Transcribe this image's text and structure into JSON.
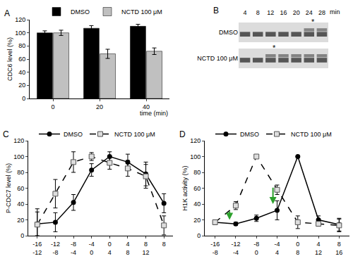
{
  "chart_data": [
    {
      "panel": "A",
      "type": "bar",
      "categories": [
        "0",
        "20",
        "40"
      ],
      "xlabel": "time (min)",
      "ylabel": "CDC6 level (%)",
      "ylim": [
        0,
        120
      ],
      "yticks": [
        0,
        20,
        40,
        60,
        80,
        100,
        120
      ],
      "grid": false,
      "legend": "top",
      "series": [
        {
          "name": "DMSO",
          "color": "#000000",
          "values": [
            100,
            107,
            110
          ],
          "errors": [
            3,
            4,
            3
          ]
        },
        {
          "name": "NCTD 100 μM",
          "color": "#c0c0c0",
          "values": [
            100,
            68,
            72
          ],
          "errors": [
            4,
            7,
            5
          ]
        }
      ]
    },
    {
      "panel": "B",
      "type": "blot",
      "categories": [
        "4",
        "8",
        "12",
        "16",
        "20",
        "24",
        "28"
      ],
      "xlabel": "min",
      "series": [
        {
          "name": "DMSO",
          "color": "#2a2a2a"
        },
        {
          "name": "NCTD 100 μM",
          "color": "#2a2a2a"
        }
      ],
      "annotations": [
        {
          "text": "*",
          "series": 0,
          "category": 5
        },
        {
          "text": "*",
          "series": 1,
          "category": 2
        }
      ]
    },
    {
      "panel": "C",
      "type": "line",
      "categories": [
        "-16",
        "-12",
        "-8",
        "-4",
        "0",
        "4",
        "8",
        "8"
      ],
      "categories_lower": [
        "-12",
        "-8",
        "-4",
        "0",
        "4",
        "8",
        "12",
        null
      ],
      "ylabel": "P-CDC7 level (%)",
      "ylim": [
        0,
        120
      ],
      "yticks": [
        0,
        20,
        40,
        60,
        80,
        100,
        120
      ],
      "grid": false,
      "legend": "top",
      "series": [
        {
          "name": "DMSO",
          "color": "#000000",
          "marker": "circle",
          "line_style": "solid",
          "values": [
            15,
            17,
            42,
            83,
            100,
            93,
            78,
            41
          ],
          "errors": [
            15,
            12,
            10,
            8,
            6,
            10,
            15,
            12
          ]
        },
        {
          "name": "NCTD 100 μM",
          "color": "#000000",
          "marker": "square",
          "line_style": "dash",
          "values": [
            14,
            53,
            93,
            100,
            92,
            85,
            75,
            13
          ],
          "errors": [
            20,
            18,
            13,
            5,
            8,
            10,
            15,
            12
          ]
        }
      ]
    },
    {
      "panel": "D",
      "type": "line",
      "categories": [
        "-16",
        "-12",
        "-8",
        "-4",
        "0",
        "4",
        "8"
      ],
      "categories_lower": [
        "-8",
        "-4",
        "0",
        "4",
        "8",
        "12",
        "16"
      ],
      "ylabel": "H1K activity (%)",
      "ylim": [
        0,
        120
      ],
      "yticks": [
        0,
        20,
        40,
        60,
        80,
        100,
        120
      ],
      "grid": false,
      "legend": "top",
      "series": [
        {
          "name": "DMSO",
          "color": "#000000",
          "marker": "circle",
          "line_style": "solid",
          "values": [
            17,
            15,
            22,
            32,
            100,
            20,
            14
          ],
          "errors": [
            3,
            2,
            4,
            12,
            0,
            5,
            8
          ]
        },
        {
          "name": "NCTD 100 μM",
          "color": "#000000",
          "marker": "square",
          "line_style": "dash",
          "values": [
            17,
            38,
            100,
            58,
            17,
            15,
            13
          ],
          "errors": [
            3,
            5,
            0,
            6,
            8,
            3,
            8
          ]
        }
      ],
      "arrows": [
        {
          "x": 0.7,
          "y": [
            32,
            20
          ]
        },
        {
          "x": 2.8,
          "y": [
            62,
            40
          ]
        }
      ]
    }
  ]
}
